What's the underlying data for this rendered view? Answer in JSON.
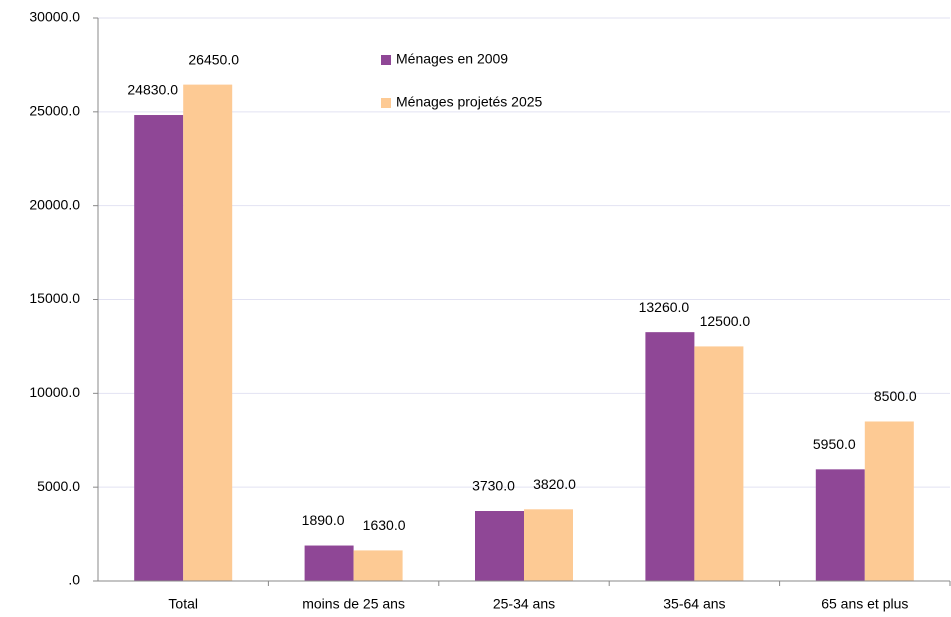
{
  "chart_data": {
    "type": "bar",
    "categories": [
      "Total",
      "moins de 25 ans",
      "25-34 ans",
      "35-64 ans",
      "65 ans et plus"
    ],
    "series": [
      {
        "name": "Ménages en 2009",
        "color": "#8f4796",
        "values": [
          24830,
          1890,
          3730,
          13260,
          5950
        ],
        "value_labels": [
          "24830.0",
          "1890.0",
          "3730.0",
          "13260.0",
          "5950.0"
        ]
      },
      {
        "name": "Ménages projetés 2025",
        "color": "#fdca94",
        "values": [
          26450,
          1630,
          3820,
          12500,
          8500
        ],
        "value_labels": [
          "26450.0",
          "1630.0",
          "3820.0",
          "12500.0",
          "8500.0"
        ]
      }
    ],
    "ylim": [
      0,
      30000
    ],
    "yticks": [
      {
        "value": 0,
        "label": ".0"
      },
      {
        "value": 5000,
        "label": "5000.0"
      },
      {
        "value": 10000,
        "label": "10000.0"
      },
      {
        "value": 15000,
        "label": "15000.0"
      },
      {
        "value": 20000,
        "label": "20000.0"
      },
      {
        "value": 25000,
        "label": "25000.0"
      },
      {
        "value": 30000,
        "label": "30000.0"
      }
    ],
    "grid": true,
    "legend": "top"
  }
}
